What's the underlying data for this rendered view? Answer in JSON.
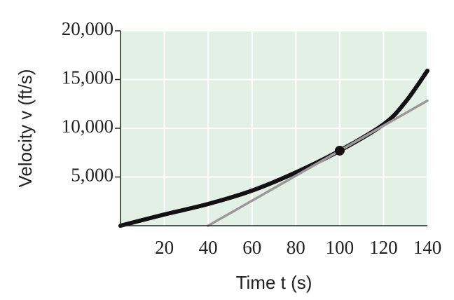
{
  "chart_data": {
    "type": "line",
    "xlabel": "Time t (s)",
    "ylabel": "Velocity v (ft/s)",
    "xlim": [
      0,
      140
    ],
    "ylim": [
      0,
      20000
    ],
    "xticks": [
      20,
      40,
      60,
      80,
      100,
      120,
      140
    ],
    "yticks": [
      {
        "value": 5000,
        "label": "5,000"
      },
      {
        "value": 10000,
        "label": "10,000"
      },
      {
        "value": 15000,
        "label": "15,000"
      },
      {
        "value": 20000,
        "label": "20,000"
      }
    ],
    "grid": true,
    "series": [
      {
        "color": "#111111",
        "x": [
          0,
          20,
          40,
          60,
          80,
          100,
          120,
          130,
          140
        ],
        "values": [
          0,
          1150,
          2230,
          3600,
          5470,
          7700,
          10400,
          12700,
          15900
        ]
      },
      {
        "color": "#999999",
        "x": [
          40,
          140
        ],
        "values": [
          0,
          12830
        ]
      },
      {
        "color": "#111111",
        "marker": true,
        "x": [
          100
        ],
        "values": [
          7700
        ]
      }
    ]
  }
}
